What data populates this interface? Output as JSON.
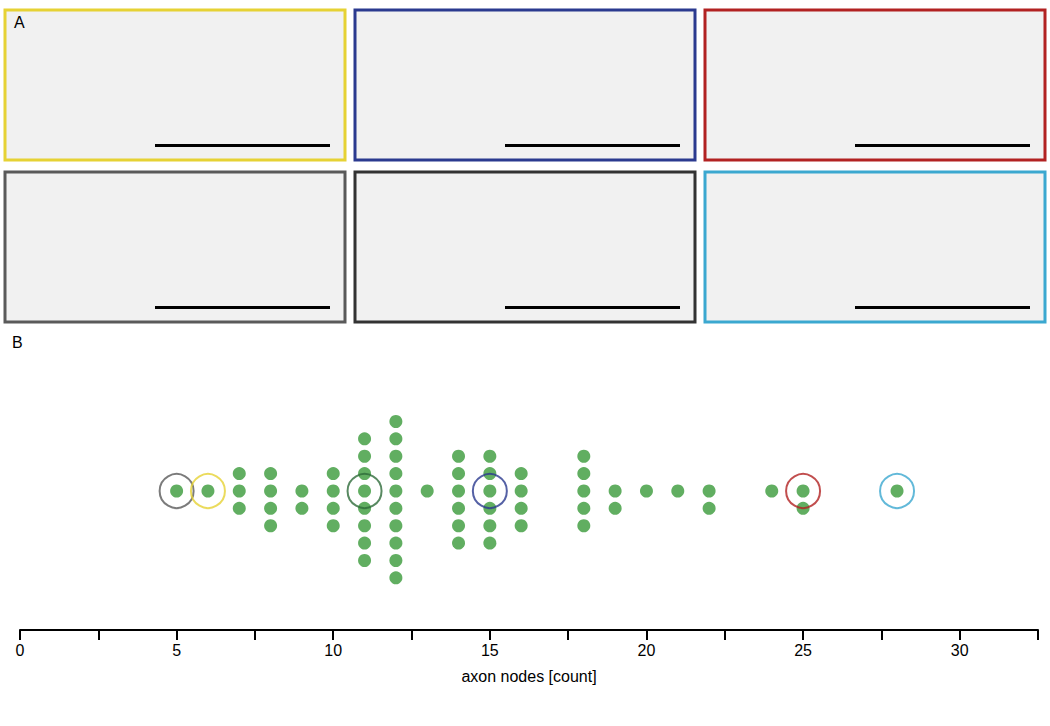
{
  "panel_a": {
    "label": "A",
    "frame_colors": [
      "#e6d234",
      "#2b3a8f",
      "#b22222",
      "#5a5a5a",
      "#333333",
      "#3ba8d0"
    ]
  },
  "chart_data": {
    "type": "scatter",
    "panel_label": "B",
    "xlabel": "axon nodes [count]",
    "x": [
      5,
      6,
      7,
      7,
      7,
      8,
      8,
      8,
      8,
      9,
      9,
      10,
      10,
      10,
      10,
      11,
      11,
      11,
      11,
      11,
      11,
      11,
      11,
      12,
      12,
      12,
      12,
      12,
      12,
      12,
      12,
      12,
      12,
      13,
      14,
      14,
      14,
      14,
      14,
      14,
      15,
      15,
      15,
      15,
      15,
      15,
      16,
      16,
      16,
      16,
      18,
      18,
      18,
      18,
      18,
      19,
      19,
      20,
      21,
      22,
      22,
      24,
      25,
      25,
      28
    ],
    "color": "#3a9a3a",
    "marker": "circle",
    "highlights": [
      {
        "x": 5,
        "color": "#5a5a5a"
      },
      {
        "x": 6,
        "color": "#e6d234"
      },
      {
        "x": 11,
        "color": "#2e6b3a"
      },
      {
        "x": 15,
        "color": "#2b3a8f"
      },
      {
        "x": 25,
        "color": "#b22222"
      },
      {
        "x": 28,
        "color": "#3ba8d0"
      }
    ],
    "xlim": [
      0,
      32.5
    ],
    "xticks": [
      0,
      5,
      10,
      15,
      20,
      25,
      30
    ],
    "grid": false,
    "tick_labels": "x"
  }
}
